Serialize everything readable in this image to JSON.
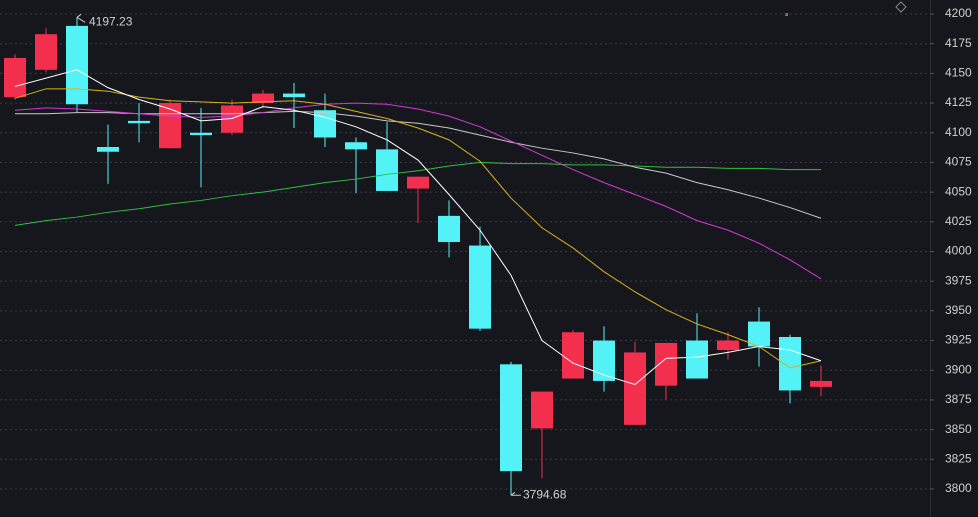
{
  "chart_data": {
    "type": "candlestick",
    "up_color": "#f2304e",
    "down_color": "#52f2f6",
    "candles": [
      {
        "open": 4130,
        "high": 4166,
        "low": 4128,
        "close": 4163
      },
      {
        "open": 4153,
        "high": 4188,
        "low": 4151,
        "close": 4183
      },
      {
        "open": 4190,
        "high": 4197.23,
        "low": 4117,
        "close": 4124
      },
      {
        "open": 4088,
        "high": 4107,
        "low": 4057,
        "close": 4084
      },
      {
        "open": 4110,
        "high": 4125,
        "low": 4092,
        "close": 4108
      },
      {
        "open": 4087,
        "high": 4128,
        "low": 4087,
        "close": 4125
      },
      {
        "open": 4100,
        "high": 4121,
        "low": 4054,
        "close": 4098
      },
      {
        "open": 4100,
        "high": 4128,
        "low": 4098,
        "close": 4123
      },
      {
        "open": 4125,
        "high": 4136,
        "low": 4121,
        "close": 4133
      },
      {
        "open": 4133,
        "high": 4142,
        "low": 4104,
        "close": 4130
      },
      {
        "open": 4119,
        "high": 4133,
        "low": 4088,
        "close": 4096
      },
      {
        "open": 4092,
        "high": 4096,
        "low": 4049,
        "close": 4086
      },
      {
        "open": 4086,
        "high": 4109,
        "low": 4051,
        "close": 4051
      },
      {
        "open": 4053,
        "high": 4063,
        "low": 4024,
        "close": 4063
      },
      {
        "open": 4030,
        "high": 4043,
        "low": 3995,
        "close": 4008
      },
      {
        "open": 4005,
        "high": 4021,
        "low": 3933,
        "close": 3935
      },
      {
        "open": 3905,
        "high": 3907,
        "low": 3794.68,
        "close": 3815
      },
      {
        "open": 3851,
        "high": 3882,
        "low": 3809,
        "close": 3882
      },
      {
        "open": 3893,
        "high": 3934,
        "low": 3893,
        "close": 3932
      },
      {
        "open": 3925,
        "high": 3937,
        "low": 3882,
        "close": 3891
      },
      {
        "open": 3854,
        "high": 3924,
        "low": 3854,
        "close": 3915
      },
      {
        "open": 3887,
        "high": 3923,
        "low": 3875,
        "close": 3923
      },
      {
        "open": 3925,
        "high": 3948,
        "low": 3893,
        "close": 3893
      },
      {
        "open": 3917,
        "high": 3932,
        "low": 3909,
        "close": 3925
      },
      {
        "open": 3941,
        "high": 3953,
        "low": 3903,
        "close": 3920
      },
      {
        "open": 3928,
        "high": 3930,
        "low": 3872,
        "close": 3883
      },
      {
        "open": 3886,
        "high": 3904,
        "low": 3878,
        "close": 3891
      }
    ],
    "series": [
      {
        "color": "#2fbf3f",
        "values": [
          4022,
          4026,
          4029,
          4033,
          4036,
          4040,
          4043,
          4047,
          4050,
          4054,
          4058,
          4061,
          4065,
          4068,
          4072,
          4075,
          4074,
          4074,
          4073,
          4073,
          4072,
          4071,
          4071,
          4070,
          4070,
          4069,
          4069
        ]
      },
      {
        "color": "#c8c8c8",
        "values": [
          4116,
          4116,
          4117,
          4117,
          4116,
          4116,
          4116,
          4116,
          4117,
          4118,
          4117,
          4114,
          4110,
          4108,
          4104,
          4098,
          4092,
          4087,
          4083,
          4078,
          4071,
          4066,
          4058,
          4052,
          4045,
          4037,
          4028
        ]
      },
      {
        "color": "#d13ad6",
        "values": [
          4119,
          4121,
          4120,
          4118,
          4116,
          4114,
          4113,
          4114,
          4117,
          4121,
          4124,
          4125,
          4124,
          4120,
          4114,
          4105,
          4093,
          4081,
          4069,
          4058,
          4048,
          4038,
          4026,
          4018,
          4007,
          3993,
          3977
        ]
      },
      {
        "color": "#d8b21f",
        "values": [
          4129,
          4137,
          4137,
          4135,
          4130,
          4127,
          4126,
          4125,
          4126,
          4127,
          4124,
          4118,
          4112,
          4104,
          4094,
          4076,
          4045,
          4020,
          4003,
          3983,
          3966,
          3951,
          3939,
          3930,
          3920,
          3902,
          3908
        ]
      },
      {
        "color": "#ffffff",
        "values": [
          4139,
          4146,
          4153,
          4138,
          4128,
          4120,
          4110,
          4112,
          4122,
          4119,
          4113,
          4105,
          4094,
          4077,
          4048,
          4018,
          3980,
          3925,
          3906,
          3896,
          3888,
          3910,
          3911,
          3915,
          3920,
          3917,
          3908
        ]
      }
    ],
    "ylim": [
      3776.4,
      4211.8
    ],
    "yticks": [
      3800,
      3825,
      3850,
      3875,
      3900,
      3925,
      3950,
      3975,
      4000,
      4025,
      4050,
      4075,
      4100,
      4125,
      4150,
      4175,
      4200
    ],
    "grid": true
  }
}
